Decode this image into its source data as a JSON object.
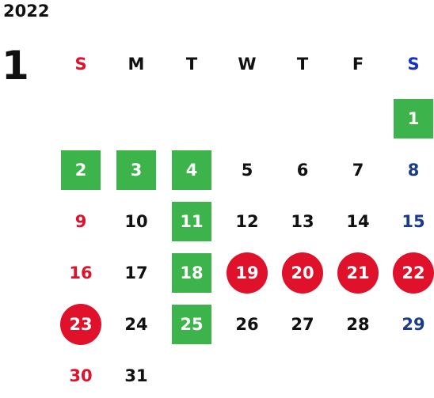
{
  "year": "2022",
  "month": "1",
  "colors": {
    "green": "#3cb44b",
    "red": "#e0112b",
    "sunday": "#e0112b",
    "saturday": "#1a3c8c",
    "weekday": "#111111"
  },
  "weekdays": [
    "S",
    "M",
    "T",
    "W",
    "T",
    "F",
    "S"
  ],
  "weeks": [
    [
      null,
      null,
      null,
      null,
      null,
      null,
      {
        "d": "1",
        "style": "green"
      }
    ],
    [
      {
        "d": "2",
        "style": "green"
      },
      {
        "d": "3",
        "style": "green"
      },
      {
        "d": "4",
        "style": "green"
      },
      {
        "d": "5"
      },
      {
        "d": "6"
      },
      {
        "d": "7"
      },
      {
        "d": "8"
      }
    ],
    [
      {
        "d": "9"
      },
      {
        "d": "10"
      },
      {
        "d": "11",
        "style": "green"
      },
      {
        "d": "12"
      },
      {
        "d": "13"
      },
      {
        "d": "14"
      },
      {
        "d": "15"
      }
    ],
    [
      {
        "d": "16"
      },
      {
        "d": "17"
      },
      {
        "d": "18",
        "style": "green"
      },
      {
        "d": "19",
        "style": "red"
      },
      {
        "d": "20",
        "style": "red"
      },
      {
        "d": "21",
        "style": "red"
      },
      {
        "d": "22",
        "style": "red"
      }
    ],
    [
      {
        "d": "23",
        "style": "red"
      },
      {
        "d": "24"
      },
      {
        "d": "25",
        "style": "green"
      },
      {
        "d": "26"
      },
      {
        "d": "27"
      },
      {
        "d": "28"
      },
      {
        "d": "29"
      }
    ],
    [
      {
        "d": "30"
      },
      {
        "d": "31"
      },
      null,
      null,
      null,
      null,
      null
    ]
  ]
}
